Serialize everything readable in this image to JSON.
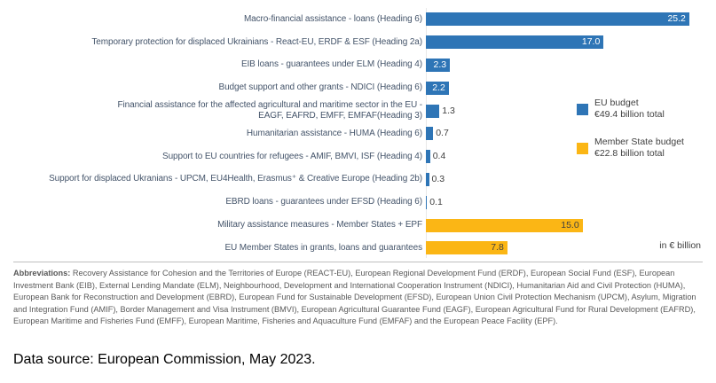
{
  "figure": {
    "unit_note": "in € billion",
    "abbreviations": {
      "label": "Abbreviations:",
      "text": " Recovery Assistance for Cohesion and the Territories of Europe (REACT-EU), European Regional Development Fund (ERDF), European Social Fund (ESF), European Investment Bank (EIB), External Lending Mandate (ELM), Neighbourhood, Development and International Cooperation Instrument (NDICI), Humanitarian Aid and Civil Protection (HUMA), European Bank for Reconstruction and Development (EBRD), European Fund for Sustainable Development (EFSD), European Union Civil Protection Mechanism (UPCM), Asylum, Migration and Integration Fund (AMIF), Border Management and Visa Instrument (BMVI), European Agricultural Guarantee Fund (EAGF), European Agricultural Fund for Rural Development (EAFRD), European Maritime and Fisheries Fund (EMFF), European Maritime, Fisheries and Aquaculture Fund (EMFAF) and the European Peace Facility (EPF)."
    },
    "data_source": "Data source: European Commission, May 2023."
  },
  "chart_data": {
    "type": "bar",
    "orientation": "horizontal",
    "unit": "€ billion",
    "unit_note": "in € billion",
    "xlim": [
      0,
      27
    ],
    "grid": false,
    "legend_position": "right",
    "categories": [
      "Macro-financial assistance - loans (Heading 6)",
      "Temporary protection for displaced Ukrainians - React-EU, ERDF & ESF (Heading 2a)",
      "EIB loans - guarantees under ELM (Heading 4)",
      "Budget support and other grants - NDICI (Heading 6)",
      "Financial assistance for the affected agricultural and maritime sector in the EU - EAGF, EAFRD, EMFF, EMFAF(Heading 3)",
      "Humanitarian assistance - HUMA (Heading 6)",
      "Support to EU countries for refugees - AMIF, BMVI, ISF (Heading 4)",
      "Support for displaced Ukranians - UPCM, EU4Health, Erasmus⁺ & Creative Europe (Heading 2b)",
      "EBRD loans - guarantees under EFSD (Heading 6)",
      "Military assistance measures - Member States + EPF",
      "EU Member States in grants, loans and guarantees"
    ],
    "values": [
      25.2,
      17.0,
      2.3,
      2.2,
      1.3,
      0.7,
      0.4,
      0.3,
      0.1,
      15.0,
      7.8
    ],
    "rows": [
      {
        "label": "Macro-financial assistance - loans (Heading 6)",
        "value": 25.2,
        "value_label": "25.2",
        "series": "eu",
        "value_label_position": "inside"
      },
      {
        "label": "Temporary protection for displaced Ukrainians - React-EU, ERDF & ESF (Heading 2a)",
        "value": 17.0,
        "value_label": "17.0",
        "series": "eu",
        "value_label_position": "inside"
      },
      {
        "label": "EIB loans - guarantees under ELM (Heading 4)",
        "value": 2.3,
        "value_label": "2.3",
        "series": "eu",
        "value_label_position": "inside"
      },
      {
        "label": "Budget support and other grants - NDICI (Heading 6)",
        "value": 2.2,
        "value_label": "2.2",
        "series": "eu",
        "value_label_position": "inside"
      },
      {
        "label": "Financial assistance for the affected agricultural and maritime sector in the EU -\nEAGF, EAFRD, EMFF, EMFAF(Heading 3)",
        "value": 1.3,
        "value_label": "1.3",
        "series": "eu",
        "value_label_position": "outside"
      },
      {
        "label": "Humanitarian assistance - HUMA (Heading 6)",
        "value": 0.7,
        "value_label": "0.7",
        "series": "eu",
        "value_label_position": "outside"
      },
      {
        "label": "Support to EU countries for refugees - AMIF, BMVI, ISF (Heading 4)",
        "value": 0.4,
        "value_label": "0.4",
        "series": "eu",
        "value_label_position": "outside"
      },
      {
        "label": "Support for displaced Ukranians - UPCM, EU4Health, Erasmus⁺ & Creative Europe  (Heading 2b)",
        "value": 0.3,
        "value_label": "0.3",
        "series": "eu",
        "value_label_position": "outside"
      },
      {
        "label": "EBRD loans - guarantees under EFSD (Heading 6)",
        "value": 0.1,
        "value_label": "0.1",
        "series": "eu",
        "value_label_position": "outside"
      },
      {
        "label": "Military assistance measures - Member States + EPF",
        "value": 15.0,
        "value_label": "15.0",
        "series": "ms",
        "value_label_position": "inside"
      },
      {
        "label": "EU Member States in grants, loans and guarantees",
        "value": 7.8,
        "value_label": "7.8",
        "series": "ms",
        "value_label_position": "inside"
      }
    ],
    "series": [
      {
        "id": "eu",
        "name": "EU budget",
        "subtitle": "€49.4 billion total",
        "color": "#2E75B6",
        "inside_value_color": "#FFFFFF"
      },
      {
        "id": "ms",
        "name": "Member State budget",
        "subtitle": "€22.8 billion total",
        "color": "#FBB615",
        "inside_value_color": "#404040"
      }
    ]
  }
}
